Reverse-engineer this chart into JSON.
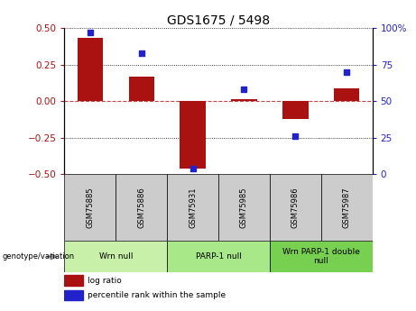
{
  "title": "GDS1675 / 5498",
  "samples": [
    "GSM75885",
    "GSM75886",
    "GSM75931",
    "GSM75985",
    "GSM75986",
    "GSM75987"
  ],
  "log_ratio": [
    0.43,
    0.165,
    -0.46,
    0.015,
    -0.12,
    0.09
  ],
  "percentile_rank": [
    97,
    83,
    4,
    58,
    26,
    70
  ],
  "groups": [
    {
      "label": "Wrn null",
      "start": 0,
      "end": 2,
      "color": "#c8f0a8"
    },
    {
      "label": "PARP-1 null",
      "start": 2,
      "end": 4,
      "color": "#a8e888"
    },
    {
      "label": "Wrn PARP-1 double\nnull",
      "start": 4,
      "end": 6,
      "color": "#78d050"
    }
  ],
  "bar_color": "#aa1111",
  "dot_color": "#2222cc",
  "zero_line_color": "#cc4444",
  "grid_color": "#333333",
  "left_ylim": [
    -0.5,
    0.5
  ],
  "right_ylim": [
    0,
    100
  ],
  "left_yticks": [
    -0.5,
    -0.25,
    0,
    0.25,
    0.5
  ],
  "right_yticks": [
    0,
    25,
    50,
    75,
    100
  ],
  "right_yticklabels": [
    "0",
    "25",
    "50",
    "75",
    "100%"
  ],
  "legend_items": [
    {
      "label": "log ratio",
      "color": "#aa1111"
    },
    {
      "label": "percentile rank within the sample",
      "color": "#2222cc"
    }
  ],
  "genotype_label": "genotype/variation",
  "sample_box_color": "#cccccc",
  "bar_width": 0.5
}
